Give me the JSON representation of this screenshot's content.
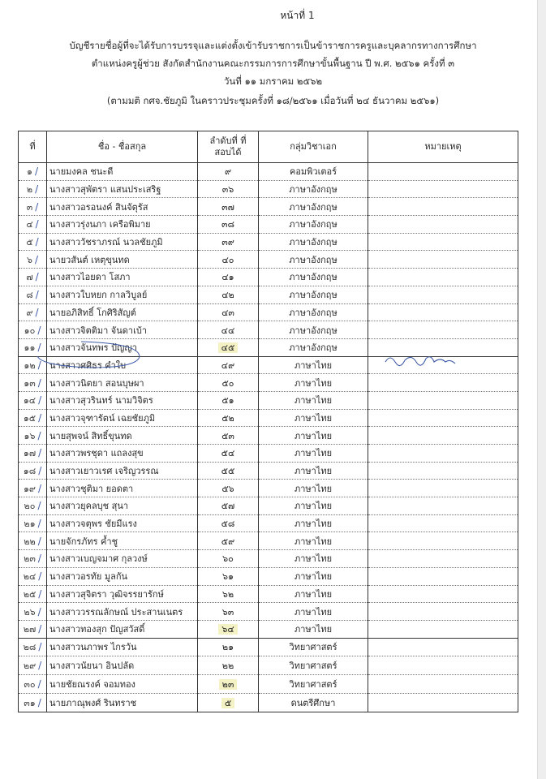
{
  "page_label": "หน้าที่ 1",
  "title_lines": [
    "บัญชีรายชื่อผู้ที่จะได้รับการบรรจุและแต่งตั้งเข้ารับราชการเป็นข้าราชการครูและบุคลากรทางการศึกษา",
    "ตำแหน่งครูผู้ช่วย สังกัดสำนักงานคณะกรรมการการศึกษาขั้นพื้นฐาน ปี พ.ศ. ๒๕๖๑  ครั้งที่ ๓",
    "วันที่  ๑๑  มกราคม ๒๕๖๒",
    "(ตามมติ กศจ.ชัยภูมิ  ในคราวประชุมครั้งที่ ๑๘/๒๕๖๑  เมื่อวันที่  ๒๔ ธันวาคม ๒๕๖๑)"
  ],
  "table": {
    "headers": [
      "ที่",
      "ชื่อ - ชื่อสกุล",
      "ลำดับที่ ที่สอบได้",
      "กลุ่มวิชาเอก",
      "หมายเหตุ"
    ],
    "rows": [
      {
        "no": "๑",
        "name": "นายมงคล  ชนะดี",
        "rank": "๙",
        "subject": "คอมพิวเตอร์"
      },
      {
        "no": "๒",
        "name": "นางสาวสุพัตรา  แสนประเสริฐ",
        "rank": "๓๖",
        "subject": "ภาษาอังกฤษ"
      },
      {
        "no": "๓",
        "name": "นางสาวอรอนงค์  สินจัตุรัส",
        "rank": "๓๗",
        "subject": "ภาษาอังกฤษ"
      },
      {
        "no": "๔",
        "name": "นางสาวรุ่งนภา  เครือพิมาย",
        "rank": "๓๘",
        "subject": "ภาษาอังกฤษ"
      },
      {
        "no": "๕",
        "name": "นางสาววัชราภรณ์  นวลชัยภูมิ",
        "rank": "๓๙",
        "subject": "ภาษาอังกฤษ"
      },
      {
        "no": "๖",
        "name": "นายวสันต์  เหตุขุนทด",
        "rank": "๔๐",
        "subject": "ภาษาอังกฤษ"
      },
      {
        "no": "๗",
        "name": "นางสาวไอยดา  โสภา",
        "rank": "๔๑",
        "subject": "ภาษาอังกฤษ"
      },
      {
        "no": "๘",
        "name": "นางสาวใบหยก  กาลวิบูลย์",
        "rank": "๔๒",
        "subject": "ภาษาอังกฤษ"
      },
      {
        "no": "๙",
        "name": "นายอภิสิทธิ์  โกศิริสัญต์",
        "rank": "๔๓",
        "subject": "ภาษาอังกฤษ"
      },
      {
        "no": "๑๐",
        "name": "นางสาวจิตติมา  จันดาเบ้า",
        "rank": "๔๔",
        "subject": "ภาษาอังกฤษ"
      },
      {
        "no": "๑๑",
        "name": "นางสาวจันทพร  ปัญญา",
        "rank": "๔๕",
        "subject": "ภาษาอังกฤษ",
        "highlight": true
      },
      {
        "no": "๑๒",
        "name": "นางสาวศศิธร  คำใบ",
        "rank": "๔๙",
        "subject": "ภาษาไทย",
        "remark_handwritten": true
      },
      {
        "no": "๑๓",
        "name": "นางสาวนิตยา  สอนบุษผา",
        "rank": "๕๐",
        "subject": "ภาษาไทย"
      },
      {
        "no": "๑๔",
        "name": "นางสาวสุวรินทร์  นามวิจิตร",
        "rank": "๕๑",
        "subject": "ภาษาไทย"
      },
      {
        "no": "๑๕",
        "name": "นางสาวจุฑารัตน์  เฉยชัยภูมิ",
        "rank": "๕๒",
        "subject": "ภาษาไทย"
      },
      {
        "no": "๑๖",
        "name": "นายสุพจน์  สิทธิ์ขุนทด",
        "rank": "๕๓",
        "subject": "ภาษาไทย"
      },
      {
        "no": "๑๗",
        "name": "นางสาวพรชุดา  แถลงสุข",
        "rank": "๕๔",
        "subject": "ภาษาไทย"
      },
      {
        "no": "๑๘",
        "name": "นางสาวเยาวเรศ  เจริญวรรณ",
        "rank": "๕๕",
        "subject": "ภาษาไทย"
      },
      {
        "no": "๑๙",
        "name": "นางสาวชุติมา  ยอดตา",
        "rank": "๕๖",
        "subject": "ภาษาไทย"
      },
      {
        "no": "๒๐",
        "name": "นางสาวยุคลบุช  สุนา",
        "rank": "๕๗",
        "subject": "ภาษาไทย"
      },
      {
        "no": "๒๑",
        "name": "นางสาวจตุพร  ชัยมีแรง",
        "rank": "๕๘",
        "subject": "ภาษาไทย"
      },
      {
        "no": "๒๒",
        "name": "นายจักรภัทร  ค้ำชู",
        "rank": "๕๙",
        "subject": "ภาษาไทย"
      },
      {
        "no": "๒๓",
        "name": "นางสาวเบญจมาศ  กุลวงษ์",
        "rank": "๖๐",
        "subject": "ภาษาไทย"
      },
      {
        "no": "๒๔",
        "name": "นางสาวอรทัย  มูลกัน",
        "rank": "๖๑",
        "subject": "ภาษาไทย"
      },
      {
        "no": "๒๕",
        "name": "นางสาวสุจิตรา  วุฒิจรรยารักษ์",
        "rank": "๖๒",
        "subject": "ภาษาไทย"
      },
      {
        "no": "๒๖",
        "name": "นางสาววรรณลักษณ์  ประสานเนตร",
        "rank": "๖๓",
        "subject": "ภาษาไทย"
      },
      {
        "no": "๒๗",
        "name": "นางสาวทองสุก ปัญสวัสดิ์",
        "rank": "๖๔",
        "subject": "ภาษาไทย",
        "highlight": true
      },
      {
        "no": "๒๘",
        "name": "นางสาวนภาพร  ไกรวัน",
        "rank": "๒๑",
        "subject": "วิทยาศาสตร์"
      },
      {
        "no": "๒๙",
        "name": "นางสาวนัยนา  อินปลัด",
        "rank": "๒๒",
        "subject": "วิทยาศาสตร์"
      },
      {
        "no": "๓๐",
        "name": "นายชัยณรงค์  จอมทอง",
        "rank": "๒๓",
        "subject": "วิทยาศาสตร์",
        "highlight": true
      },
      {
        "no": "๓๑",
        "name": "นายภาณุพงศ์  รินทราช",
        "rank": "๕",
        "subject": "ดนตรีศึกษา",
        "highlight": true
      }
    ]
  },
  "colors": {
    "ink": "#2a2a2a",
    "pen": "#3d5aa8",
    "highlighter": "#f4f1c4"
  }
}
